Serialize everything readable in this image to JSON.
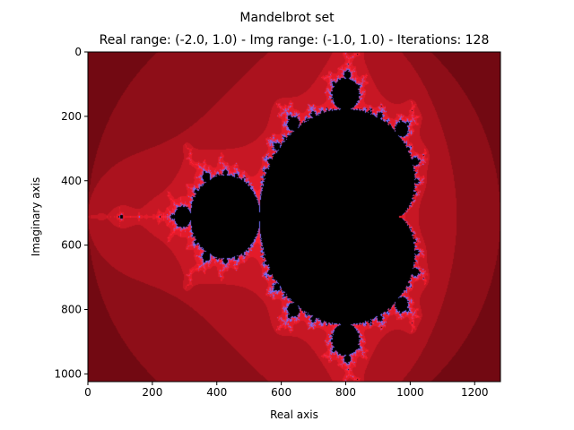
{
  "figure": {
    "title": "Mandelbrot set",
    "subtitle": "Real range: (-2.0, 1.0) - Img range: (-1.0, 1.0) - Iterations: 128"
  },
  "chart_data": {
    "type": "heatmap",
    "title": "Mandelbrot set",
    "subtitle": "Real range: (-2.0, 1.0) - Img range: (-1.0, 1.0) - Iterations: 128",
    "xlabel": "Real axis",
    "ylabel": "Imaginary axis",
    "xlim": [
      0,
      1280
    ],
    "ylim": [
      1024,
      0
    ],
    "x_ticks": [
      0,
      200,
      400,
      600,
      800,
      1000,
      1200
    ],
    "y_ticks": [
      0,
      200,
      400,
      600,
      800,
      1000
    ],
    "x_tick_labels": [
      "0",
      "200",
      "400",
      "600",
      "800",
      "1000",
      "1200"
    ],
    "y_tick_labels": [
      "0",
      "200",
      "400",
      "600",
      "800",
      "1000"
    ],
    "real_range": [
      -2.0,
      1.0
    ],
    "imag_range": [
      -1.0,
      1.0
    ],
    "max_iterations": 128,
    "pixel_grid": [
      1280,
      1024
    ],
    "grid": false,
    "colors": {
      "set_interior": "#000000",
      "near_boundary": "#ff2030",
      "far_exterior": "#3a0006",
      "filament_highlight": "#7070ff"
    }
  }
}
